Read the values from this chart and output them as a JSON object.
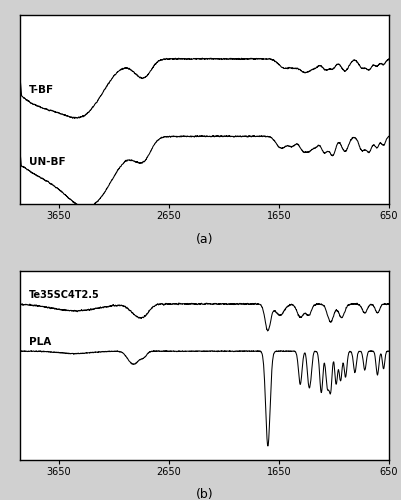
{
  "title_a": "(a)",
  "title_b": "(b)",
  "x_ticks": [
    3650,
    2650,
    1650,
    650
  ],
  "label_tbf": "T-BF",
  "label_unbf": "UN-BF",
  "label_te": "Te35SC4T2.5",
  "label_pla": "PLA",
  "line_color": "#000000",
  "bg_color": "#ffffff",
  "fig_bg": "#d0d0d0"
}
